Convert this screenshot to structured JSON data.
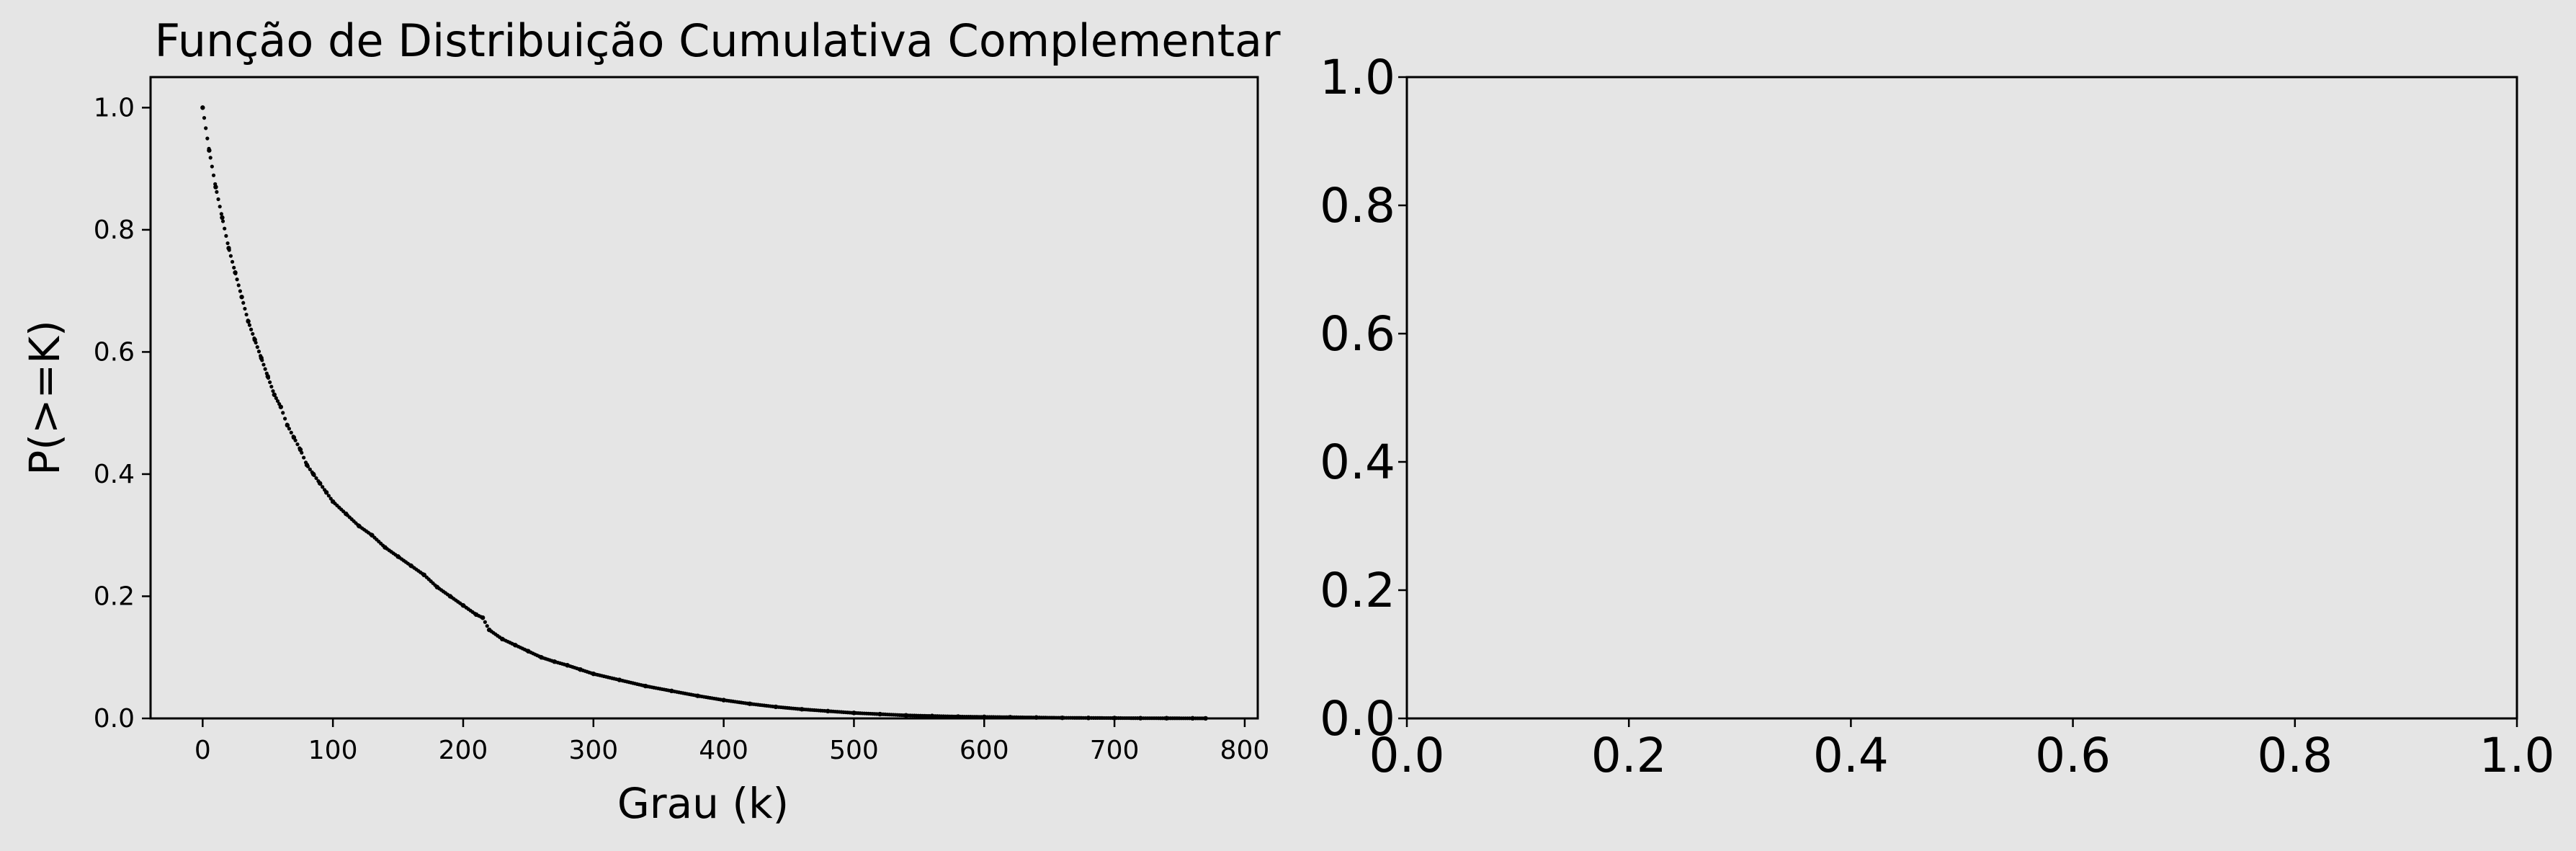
{
  "figure": {
    "background": "#e5e5e5",
    "axes_background": "#e5e5e5"
  },
  "chart_data": [
    {
      "type": "scatter",
      "title": "Função de Distribuição Cumulativa Complementar",
      "xlabel": "Grau (k)",
      "ylabel": "P(>=K)",
      "xlim": [
        -40,
        810
      ],
      "ylim": [
        0,
        1.05
      ],
      "xticks": [
        0,
        100,
        200,
        300,
        400,
        500,
        600,
        700,
        800
      ],
      "yticks": [
        0.0,
        0.2,
        0.4,
        0.6,
        0.8,
        1.0
      ],
      "grid": false,
      "marker_color": "#000000",
      "curve_description": "monotone decreasing complementary CDF; sampled points (x, y) below, densely connected points between them",
      "series": [
        {
          "x": [
            0,
            5,
            10,
            15,
            20,
            25,
            30,
            35,
            40,
            45,
            50,
            55,
            60,
            65,
            70,
            75,
            80,
            85,
            90,
            95,
            100,
            110,
            120,
            130,
            140,
            150,
            160,
            170,
            180,
            190,
            200,
            210,
            215,
            220,
            230,
            240,
            250,
            260,
            270,
            280,
            290,
            300,
            320,
            340,
            360,
            380,
            400,
            420,
            440,
            460,
            480,
            500,
            520,
            540,
            560,
            580,
            600,
            620,
            640,
            660,
            680,
            700,
            720,
            740,
            760,
            770
          ],
          "y": [
            1.0,
            0.93,
            0.87,
            0.82,
            0.77,
            0.73,
            0.69,
            0.65,
            0.62,
            0.59,
            0.56,
            0.53,
            0.51,
            0.48,
            0.46,
            0.44,
            0.415,
            0.4,
            0.385,
            0.37,
            0.355,
            0.335,
            0.315,
            0.3,
            0.28,
            0.265,
            0.25,
            0.235,
            0.215,
            0.2,
            0.185,
            0.17,
            0.165,
            0.145,
            0.13,
            0.12,
            0.11,
            0.1,
            0.093,
            0.087,
            0.08,
            0.073,
            0.063,
            0.053,
            0.045,
            0.037,
            0.03,
            0.024,
            0.019,
            0.015,
            0.012,
            0.009,
            0.007,
            0.005,
            0.004,
            0.003,
            0.0025,
            0.002,
            0.0015,
            0.001,
            0.0008,
            0.0006,
            0.0004,
            0.0003,
            0.0002,
            0.0001
          ]
        }
      ]
    },
    {
      "type": "empty",
      "xlim": [
        0.0,
        1.0
      ],
      "ylim": [
        0.0,
        1.0
      ],
      "xticks": [
        0.0,
        0.2,
        0.4,
        0.6,
        0.8,
        1.0
      ],
      "yticks": [
        0.0,
        0.2,
        0.4,
        0.6,
        0.8,
        1.0
      ],
      "tick_labels": [
        "0.0",
        "0.2",
        "0.4",
        "0.6",
        "0.8",
        "1.0"
      ],
      "grid": false
    }
  ]
}
